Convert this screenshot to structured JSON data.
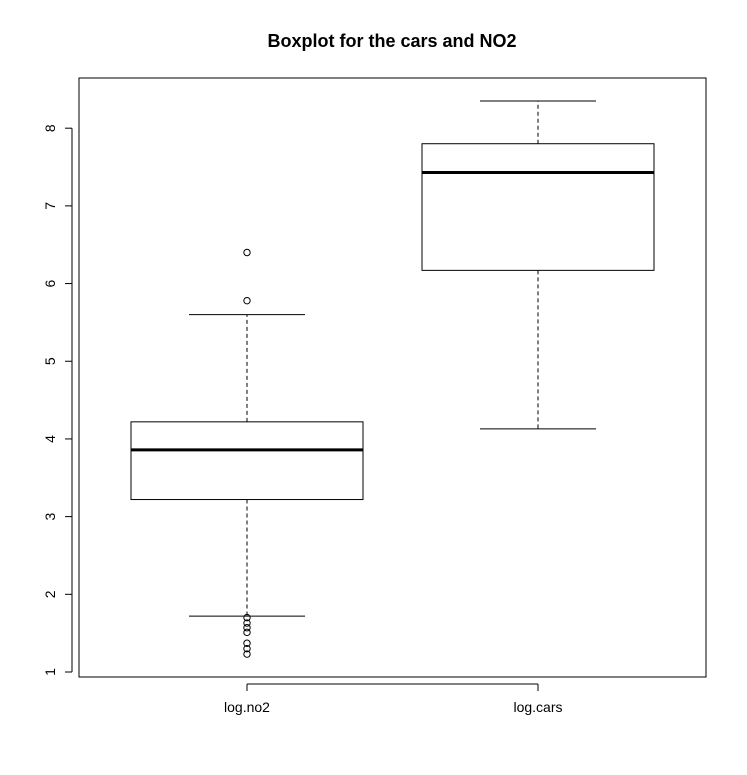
{
  "chart_data": {
    "type": "boxplot",
    "title": "Boxplot for the cars and NO2",
    "xlabel": "",
    "ylabel": "",
    "ylim": [
      0.95,
      8.6
    ],
    "yticks": [
      1,
      2,
      3,
      4,
      5,
      6,
      7,
      8
    ],
    "grid": false,
    "legend": "none",
    "categories": [
      "log.no2",
      "log.cars"
    ],
    "boxes": [
      {
        "whisker_low": 1.72,
        "q1": 3.22,
        "median": 3.86,
        "q3": 4.22,
        "whisker_high": 5.6,
        "outliers": [
          6.4,
          5.78,
          1.7,
          1.63,
          1.57,
          1.51,
          1.37,
          1.3,
          1.23
        ]
      },
      {
        "whisker_low": 4.13,
        "q1": 6.17,
        "median": 7.43,
        "q3": 7.8,
        "whisker_high": 8.35,
        "outliers": []
      }
    ]
  }
}
